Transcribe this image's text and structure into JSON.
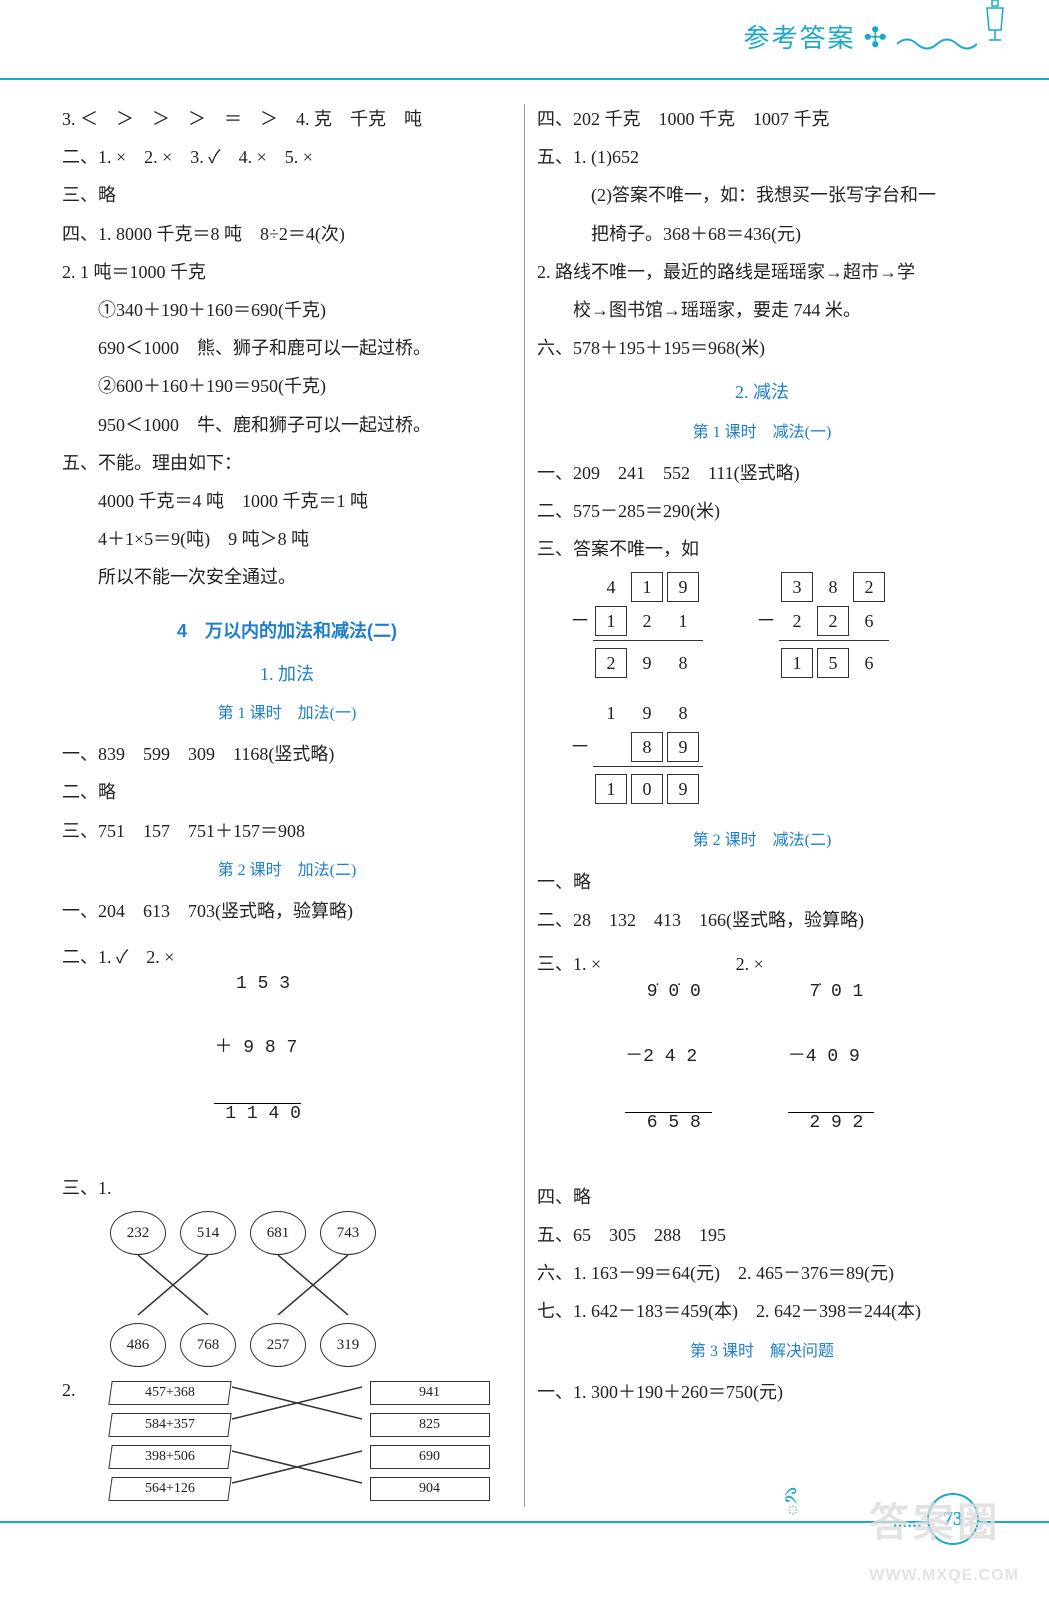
{
  "header": {
    "title": "参考答案"
  },
  "colors": {
    "accent": "#1ba9c9",
    "link": "#1d7ecb",
    "text": "#222"
  },
  "left": {
    "l1": "3. ＜　＞　＞　＞　＝　＞　4. 克　千克　吨",
    "l2": "二、1. ×　2. ×　3. ✓　4. ×　5. ×",
    "l3": "三、略",
    "l4": "四、1. 8000 千克＝8 吨　8÷2＝4(次)",
    "l5": "2. 1 吨＝1000 千克",
    "l6": "①340＋190＋160＝690(千克)",
    "l7": "690＜1000　熊、狮子和鹿可以一起过桥。",
    "l8": "②600＋160＋190＝950(千克)",
    "l9": "950＜1000　牛、鹿和狮子可以一起过桥。",
    "l10": "五、不能。理由如下：",
    "l11": "4000 千克＝4 吨　1000 千克＝1 吨",
    "l12": "4＋1×5＝9(吨)　9 吨＞8 吨",
    "l13": "所以不能一次安全通过。",
    "chapter": "4　万以内的加法和减法(二)",
    "sec1": "1. 加法",
    "lesson1": "第 1 课时　加法(一)",
    "l14": "一、839　599　309　1168(竖式略)",
    "l15": "二、略",
    "l16": "三、751　157　751＋157＝908",
    "lesson2": "第 2 课时　加法(二)",
    "l17": "一、204　613　703(竖式略，验算略)",
    "l18a": "二、1. ✓　2. ×",
    "vcalc": {
      "r1": "  1 5 3",
      "r2": "＋ 9 8 7",
      "r3": " 1 1 4 0"
    },
    "l19": "三、1.",
    "balloons": {
      "top": [
        "232",
        "514",
        "681",
        "743"
      ],
      "bottom": [
        "486",
        "768",
        "257",
        "319"
      ]
    },
    "l20": "2.",
    "ribbons": {
      "left": [
        "457+368",
        "584+357",
        "398+506",
        "564+126"
      ],
      "right": [
        "941",
        "825",
        "690",
        "904"
      ],
      "mapping": [
        [
          0,
          1
        ],
        [
          1,
          0
        ],
        [
          2,
          3
        ],
        [
          3,
          2
        ]
      ]
    }
  },
  "right": {
    "l1": "四、202 千克　1000 千克　1007 千克",
    "l2": "五、1. (1)652",
    "l3": "(2)答案不唯一，如：我想买一张写字台和一",
    "l4": "把椅子。368＋68＝436(元)",
    "l5": "2. 路线不唯一，最近的路线是瑶瑶家→超市→学",
    "l6": "校→图书馆→瑶瑶家，要走 744 米。",
    "l7": "六、578＋195＋195＝968(米)",
    "sec2": "2. 减法",
    "lesson3": "第 1 课时　减法(一)",
    "l8": "一、209　241　552　111(竖式略)",
    "l9": "二、575－285＝290(米)",
    "l10": "三、答案不唯一，如",
    "boxsub": [
      {
        "r1": [
          " ",
          "4",
          "1b",
          "9b"
        ],
        "r2": [
          "－",
          "1b",
          "2",
          "1"
        ],
        "r3": [
          " ",
          "2b",
          "9",
          "8"
        ]
      },
      {
        "r1": [
          " ",
          "3b",
          "8",
          "2b"
        ],
        "r2": [
          "－",
          "2",
          "2b",
          "6"
        ],
        "r3": [
          " ",
          "1b",
          "5b",
          "6"
        ]
      },
      {
        "r1": [
          " ",
          "1",
          "9",
          "8"
        ],
        "r2": [
          "－",
          " ",
          "8b",
          "9b"
        ],
        "r3": [
          " ",
          "1b",
          "0b",
          "9b"
        ]
      }
    ],
    "lesson4": "第 2 课时　减法(二)",
    "l11": "一、略",
    "l12": "二、28　132　413　166(竖式略，验算略)",
    "l13a": "三、1. ×",
    "vcalcA": {
      "r1": "  9̇ 0̇ 0",
      "r2": "－2 4 2",
      "r3": "  6 5 8"
    },
    "l13b": "2. ×",
    "vcalcB": {
      "r1": "  7̇ 0 1",
      "r2": "－4 0 9",
      "r3": "  2 9 2"
    },
    "l14": "四、略",
    "l15": "五、65　305　288　195",
    "l16": "六、1. 163－99＝64(元)　2. 465－376＝89(元)",
    "l17": "七、1. 642－183＝459(本)　2. 642－398＝244(本)",
    "lesson5": "第 3 课时　解决问题",
    "l18": "一、1. 300＋190＋260＝750(元)"
  },
  "footer": {
    "page": "73",
    "watermark": "答案圈",
    "url": "WWW.MXQE.COM"
  }
}
